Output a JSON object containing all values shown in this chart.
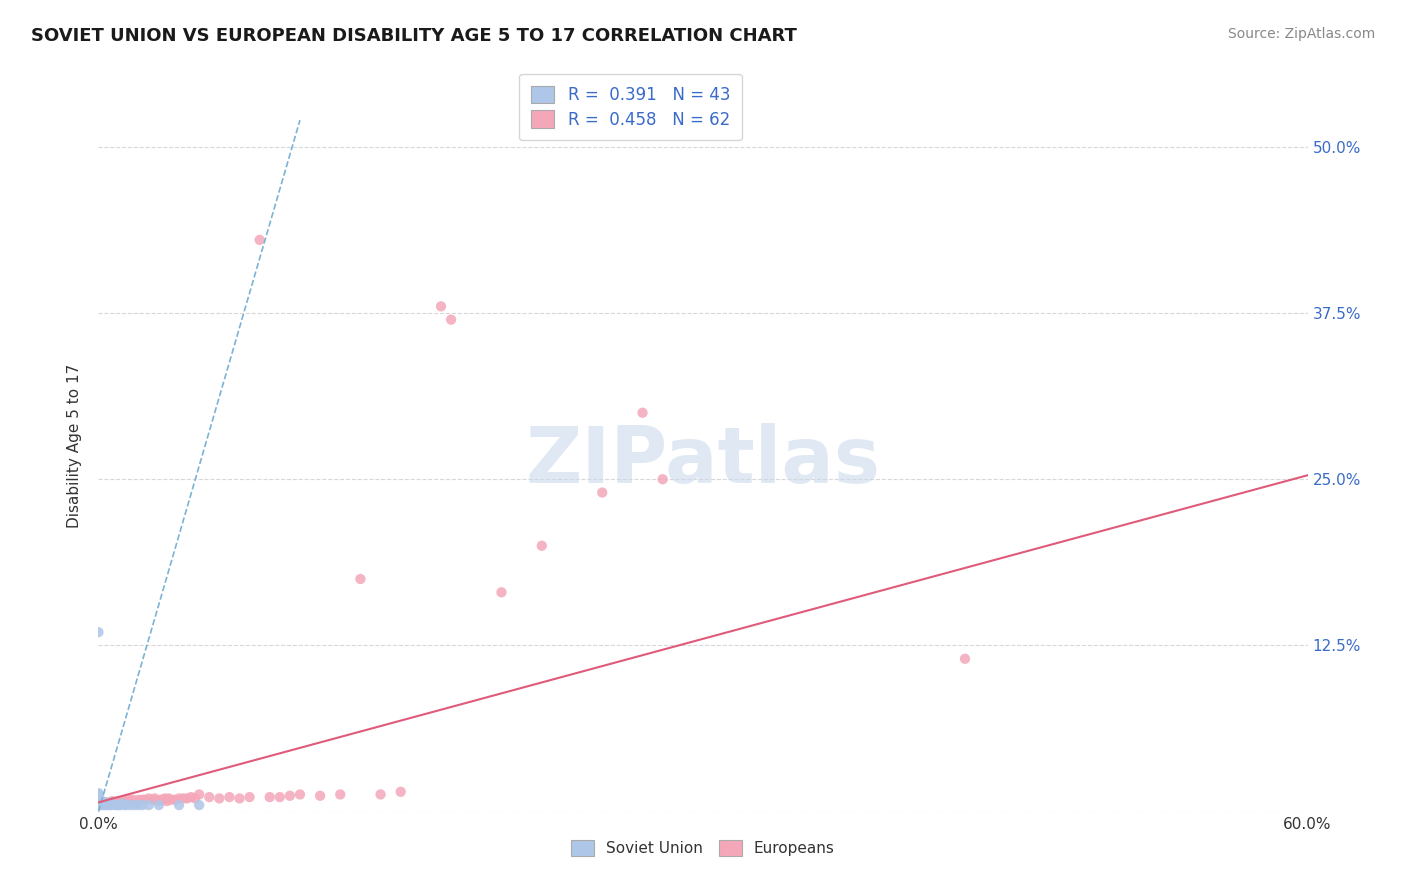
{
  "title": "SOVIET UNION VS EUROPEAN DISABILITY AGE 5 TO 17 CORRELATION CHART",
  "source_text": "Source: ZipAtlas.com",
  "ylabel": "Disability Age 5 to 17",
  "xlim": [
    0.0,
    0.6
  ],
  "ylim": [
    0.0,
    0.55
  ],
  "ytick_positions": [
    0.0,
    0.125,
    0.25,
    0.375,
    0.5
  ],
  "right_ytick_labels": [
    "50.0%",
    "37.5%",
    "25.0%",
    "12.5%"
  ],
  "right_ytick_positions": [
    0.5,
    0.375,
    0.25,
    0.125
  ],
  "watermark": "ZIPatlas",
  "soviet_R": 0.391,
  "soviet_N": 43,
  "european_R": 0.458,
  "european_N": 62,
  "soviet_color": "#aec6e8",
  "european_color": "#f4a7b9",
  "soviet_trendline_color": "#7ab3d4",
  "european_trendline_color": "#e05a7a",
  "background_color": "#ffffff",
  "grid_color": "#d8d8d8",
  "soviet_trendline_x": [
    0.0,
    0.1
  ],
  "soviet_trendline_y": [
    0.0,
    0.52
  ],
  "european_trendline_x": [
    0.0,
    0.6
  ],
  "european_trendline_y": [
    0.007,
    0.253
  ],
  "soviet_x": [
    0.0,
    0.0,
    0.0,
    0.0,
    0.0,
    0.0,
    0.0,
    0.0,
    0.0,
    0.0,
    0.001,
    0.001,
    0.001,
    0.001,
    0.001,
    0.002,
    0.002,
    0.002,
    0.003,
    0.003,
    0.003,
    0.004,
    0.004,
    0.005,
    0.005,
    0.006,
    0.007,
    0.008,
    0.009,
    0.01,
    0.011,
    0.012,
    0.013,
    0.014,
    0.016,
    0.018,
    0.02,
    0.022,
    0.025,
    0.03,
    0.04,
    0.05,
    0.0
  ],
  "soviet_y": [
    0.005,
    0.006,
    0.007,
    0.008,
    0.009,
    0.01,
    0.011,
    0.012,
    0.013,
    0.014,
    0.005,
    0.006,
    0.007,
    0.008,
    0.009,
    0.005,
    0.006,
    0.007,
    0.005,
    0.006,
    0.007,
    0.005,
    0.006,
    0.005,
    0.007,
    0.005,
    0.006,
    0.005,
    0.005,
    0.005,
    0.005,
    0.006,
    0.005,
    0.005,
    0.005,
    0.005,
    0.005,
    0.005,
    0.005,
    0.005,
    0.005,
    0.005,
    0.135
  ],
  "european_x": [
    0.001,
    0.002,
    0.003,
    0.004,
    0.005,
    0.006,
    0.007,
    0.008,
    0.009,
    0.01,
    0.011,
    0.012,
    0.013,
    0.014,
    0.015,
    0.016,
    0.017,
    0.018,
    0.019,
    0.02,
    0.022,
    0.023,
    0.025,
    0.027,
    0.028,
    0.03,
    0.031,
    0.032,
    0.033,
    0.034,
    0.035,
    0.036,
    0.038,
    0.04,
    0.042,
    0.044,
    0.046,
    0.048,
    0.05,
    0.055,
    0.06,
    0.065,
    0.07,
    0.075,
    0.08,
    0.085,
    0.09,
    0.095,
    0.1,
    0.11,
    0.12,
    0.13,
    0.14,
    0.15,
    0.17,
    0.175,
    0.2,
    0.22,
    0.25,
    0.27,
    0.28,
    0.43
  ],
  "european_y": [
    0.005,
    0.006,
    0.007,
    0.007,
    0.006,
    0.007,
    0.008,
    0.007,
    0.007,
    0.008,
    0.007,
    0.008,
    0.008,
    0.007,
    0.009,
    0.008,
    0.009,
    0.007,
    0.008,
    0.009,
    0.009,
    0.009,
    0.01,
    0.009,
    0.01,
    0.008,
    0.009,
    0.009,
    0.01,
    0.008,
    0.01,
    0.009,
    0.009,
    0.01,
    0.01,
    0.01,
    0.011,
    0.01,
    0.013,
    0.011,
    0.01,
    0.011,
    0.01,
    0.011,
    0.43,
    0.011,
    0.011,
    0.012,
    0.013,
    0.012,
    0.013,
    0.175,
    0.013,
    0.015,
    0.38,
    0.37,
    0.165,
    0.2,
    0.24,
    0.3,
    0.25,
    0.115
  ]
}
